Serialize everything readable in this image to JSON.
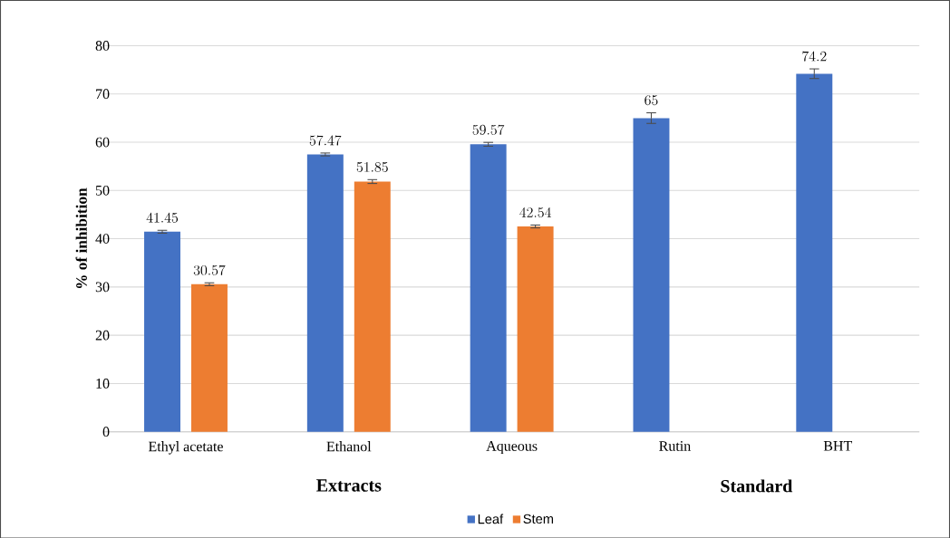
{
  "chart_data": {
    "type": "bar",
    "ylabel": "% of inhibition",
    "categories": [
      "Ethyl acetate",
      "Ethanol",
      "Aqueous",
      "Rutin",
      "BHT"
    ],
    "series": [
      {
        "name": "Leaf",
        "color": "#4472c4",
        "values": [
          41.45,
          57.47,
          59.57,
          65,
          74.2
        ],
        "errors": [
          0.3,
          0.3,
          0.4,
          1.1,
          1
        ]
      },
      {
        "name": "Stem",
        "color": "#ed7d31",
        "values": [
          30.57,
          51.85,
          42.54,
          null,
          null
        ],
        "errors": [
          0.3,
          0.4,
          0.3,
          null,
          null
        ]
      }
    ],
    "ylim": [
      0,
      80
    ],
    "yticks": [
      0,
      10,
      20,
      30,
      40,
      50,
      60,
      70,
      80
    ],
    "grid": "y",
    "legend": "bottom",
    "data_labels": true,
    "annotations": [
      "Extracts",
      "Standard"
    ]
  }
}
